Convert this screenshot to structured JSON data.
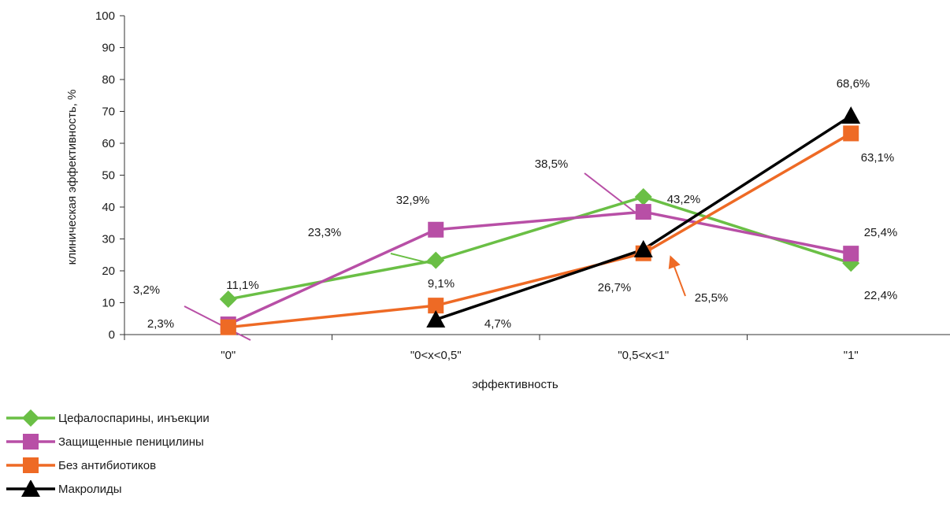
{
  "chart_data": {
    "type": "line",
    "title": "",
    "xlabel": "эффективность",
    "ylabel": "клиническая эффективность, %",
    "ylim": [
      0,
      100
    ],
    "yticks": [
      0,
      10,
      20,
      30,
      40,
      50,
      60,
      70,
      80,
      90,
      100
    ],
    "categories": [
      "\"0\"",
      "\"0<x<0,5\"",
      "\"0,5<x<1\"",
      "\"1\""
    ],
    "grid": false,
    "legend_position": "bottom-left",
    "series": [
      {
        "name": "Цефалоспарины, инъекции",
        "color": "#6abf45",
        "marker": "diamond",
        "values": [
          11.1,
          23.3,
          43.2,
          22.4
        ],
        "labels": [
          "11,1%",
          "23,3%",
          "43,2%",
          "22,4%"
        ]
      },
      {
        "name": "Защищенные пеницилины",
        "color": "#b84fa6",
        "marker": "square",
        "values": [
          3.2,
          32.9,
          38.5,
          25.4
        ],
        "labels": [
          "3,2%",
          "32,9%",
          "38,5%",
          "25,4%"
        ]
      },
      {
        "name": "Без антибиотиков",
        "color": "#ee6a25",
        "marker": "square",
        "values": [
          2.3,
          9.1,
          25.5,
          63.1
        ],
        "labels": [
          "2,3%",
          "9,1%",
          "25,5%",
          "63,1%"
        ]
      },
      {
        "name": "Макролиды",
        "color": "#000000",
        "marker": "triangle",
        "values": [
          null,
          4.7,
          26.7,
          68.6
        ],
        "labels": [
          "",
          "4,7%",
          "26,7%",
          "68,6%"
        ]
      }
    ]
  }
}
